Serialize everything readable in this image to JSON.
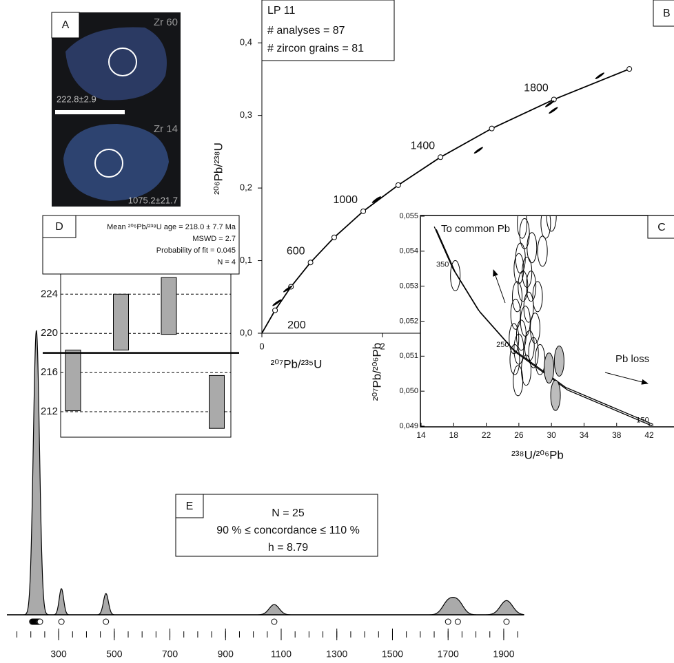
{
  "panel_a": {
    "label": "A",
    "grains": [
      {
        "name": "Zr 60",
        "age": "222.8±2.9"
      },
      {
        "name": "Zr 14",
        "age": "1075.2±21.7"
      }
    ]
  },
  "chart_data": [
    {
      "type": "concordia",
      "panel_label": "B",
      "title": "LP 11",
      "annotations": [
        "# analyses = 87",
        "# zircon grains = 81"
      ],
      "x_label": "²⁰⁷Pb/²³⁵U",
      "y_label": "²⁰⁶Pb/²³⁸U",
      "xlim": [
        0,
        6.83
      ],
      "ylim": [
        0,
        0.459
      ],
      "xticks": [
        0,
        2
      ],
      "yticks": [
        {
          "value": 0,
          "label": "0,0"
        },
        {
          "value": 0.1,
          "label": "0,1"
        },
        {
          "value": 0.2,
          "label": "0,2"
        },
        {
          "value": 0.3,
          "label": "0,3"
        },
        {
          "value": 0.4,
          "label": "0,4"
        }
      ],
      "series": [
        {
          "mark": "line",
          "color": "#000000",
          "x": [
            0.218,
            0.482,
            0.806,
            1.199,
            1.68,
            2.26,
            2.96,
            3.81,
            4.84,
            6.09
          ],
          "values": [
            0.0315,
            0.064,
            0.0975,
            0.132,
            0.168,
            0.204,
            0.2425,
            0.282,
            0.322,
            0.364
          ],
          "marker_labels": [
            "200",
            null,
            "600",
            null,
            "1000",
            null,
            "1400",
            null,
            "1800",
            null
          ]
        },
        {
          "mark": "ellipse",
          "color": "#000000",
          "x": [
            5.6,
            4.77,
            4.83,
            3.59,
            1.9,
            0.25,
            0.43
          ],
          "values": [
            0.3545,
            0.316,
            0.307,
            0.252,
            0.184,
            0.042,
            0.061
          ]
        }
      ]
    },
    {
      "type": "tera-wasserburg",
      "panel_label": "C",
      "x_label": "²³⁸U/²⁰⁶Pb",
      "y_label": "²⁰⁷Pb/²⁰⁶Pb",
      "annotations": [
        "To common Pb",
        "Pb loss"
      ],
      "xlim": [
        14,
        45.04
      ],
      "ylim": [
        0.049,
        0.055
      ],
      "xticks": [
        14,
        18,
        22,
        26,
        30,
        34,
        38,
        42
      ],
      "yticks": [
        {
          "value": 0.049,
          "label": "0,049"
        },
        {
          "value": 0.05,
          "label": "0,050"
        },
        {
          "value": 0.051,
          "label": "0,051"
        },
        {
          "value": 0.052,
          "label": "0,052"
        },
        {
          "value": 0.053,
          "label": "0,053"
        },
        {
          "value": 0.054,
          "label": "0,054"
        },
        {
          "value": 0.055,
          "label": "0,055"
        }
      ],
      "series": [
        {
          "mark": "line",
          "color": "#000000",
          "x": [
            15.62,
            17.92,
            20.99,
            25.29,
            31.73,
            42.48
          ],
          "values": [
            0.0547,
            0.05349,
            0.05233,
            0.0512,
            0.05011,
            0.04905
          ],
          "marker_labels": [
            null,
            "350",
            null,
            "250",
            null,
            "150"
          ]
        },
        {
          "mark": "ellipse",
          "color": "none",
          "x": [
            18.2,
            25.5,
            26,
            26.3,
            26.8,
            27.2,
            25.8,
            26.5,
            27,
            26.2,
            27.6,
            26.7,
            25.4,
            28,
            27.8,
            26.9,
            25.9,
            28.3,
            26.4,
            27.3,
            25.6,
            29.3,
            28.9,
            26,
            27.5,
            28.6,
            30
          ],
          "values": [
            0.0533,
            0.0509,
            0.0512,
            0.0516,
            0.052,
            0.0524,
            0.0527,
            0.053,
            0.0534,
            0.0538,
            0.0541,
            0.0545,
            0.0515,
            0.0518,
            0.0511,
            0.0506,
            0.0503,
            0.0527,
            0.0548,
            0.0513,
            0.0522,
            0.0548,
            0.054,
            0.0535,
            0.053,
            0.0509,
            0.055
          ]
        },
        {
          "mark": "ellipse",
          "color": "#bdbdbd",
          "x": [
            29.7,
            30.95,
            30.5
          ],
          "values": [
            0.05066,
            0.05086,
            0.04988
          ]
        }
      ]
    },
    {
      "type": "range",
      "panel_label": "D",
      "annotations": [
        "Mean ²⁰⁶Pb/²³⁸U age = 218.0 ± 7.7 Ma",
        "MSWD = 2.7",
        "Probability of fit = 0.045",
        "N = 4"
      ],
      "ylim": [
        209.4,
        226.06
      ],
      "yticks": [
        212,
        216,
        220,
        224
      ],
      "grid": true,
      "values": [
        215.2,
        221.15,
        222.8,
        213.0
      ],
      "errors": [
        3.1,
        2.85,
        2.9,
        2.7
      ],
      "mean": 218,
      "color": "#aaaaaa"
    },
    {
      "type": "density",
      "panel_label": "E",
      "annotations": [
        "N = 25",
        "90 % ≤ concordance ≤ 110 %",
        "h = 8.79"
      ],
      "xlim": [
        114,
        1972
      ],
      "xticks": [
        300,
        500,
        700,
        900,
        1100,
        1300,
        1500,
        1700,
        1900
      ],
      "minor_xticks": [
        150,
        200,
        250,
        300,
        350,
        400,
        450,
        500,
        550,
        600,
        650,
        700,
        750,
        800,
        850,
        900,
        950,
        1000,
        1050,
        1100,
        1150,
        1200,
        1250,
        1300,
        1350,
        1400,
        1450,
        1500,
        1550,
        1600,
        1650,
        1700,
        1750,
        1800,
        1850,
        1900,
        1950
      ],
      "series": [
        {
          "color": "#aaaaaa",
          "x": [
            220,
            310,
            470,
            1075,
            1700,
            1735,
            1910
          ],
          "values": [
            1,
            0.092,
            0.075,
            0.036,
            0.045,
            0.045,
            0.05
          ],
          "widths": [
            11,
            8,
            9,
            18,
            20,
            20,
            22
          ]
        }
      ],
      "ages": [
        205,
        208,
        210,
        212,
        213,
        215,
        216,
        217,
        218,
        219,
        220,
        221,
        222,
        223,
        225,
        226,
        228,
        230,
        233,
        310,
        470,
        1075,
        1700,
        1735,
        1910
      ]
    }
  ]
}
